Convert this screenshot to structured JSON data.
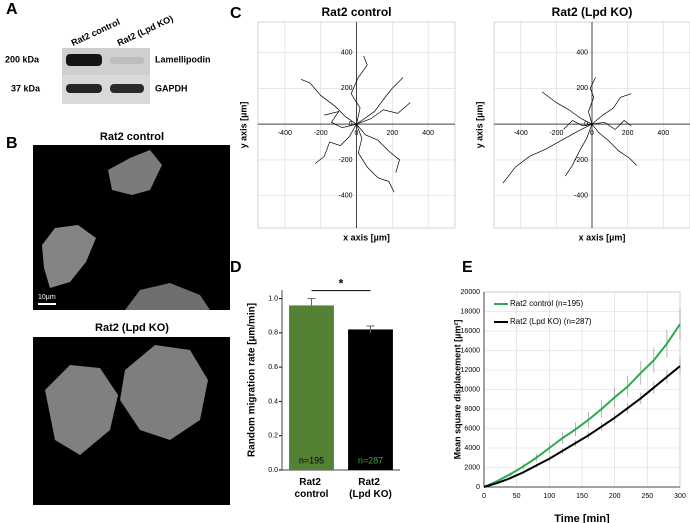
{
  "panel_labels": [
    "A",
    "B",
    "C",
    "D",
    "E"
  ],
  "blot": {
    "lanes": [
      "Rat2 control",
      "Rat2 (Lpd KO)"
    ],
    "sizes": [
      "200 kDa",
      "37 kDa"
    ],
    "proteins": [
      "Lamellipodin",
      "GAPDH"
    ]
  },
  "micrographs": {
    "titles": [
      "Rat2 control",
      "Rat2 (Lpd KO)"
    ],
    "scale_bar": "10µm"
  },
  "chart_data": [
    {
      "type": "line",
      "title": "Rat2 control",
      "xlabel": "x axis [µm]",
      "ylabel": "y axis [µm]",
      "xlim": [
        -550,
        550
      ],
      "ylim": [
        -580,
        570
      ],
      "xticks": [
        -400,
        -200,
        0,
        200,
        400
      ],
      "yticks": [
        -400,
        -200,
        0,
        200,
        400
      ],
      "grid": true,
      "series": [
        {
          "color": "#000000",
          "x": [
            0,
            -60,
            -120,
            -200,
            -260,
            -310
          ],
          "values": [
            0,
            40,
            100,
            160,
            230,
            250
          ]
        },
        {
          "color": "#000000",
          "x": [
            0,
            50,
            120,
            180,
            240,
            220
          ],
          "values": [
            0,
            -60,
            -90,
            -150,
            -200,
            -270
          ]
        },
        {
          "color": "#000000",
          "x": [
            0,
            80,
            150,
            230,
            300
          ],
          "values": [
            0,
            30,
            80,
            60,
            120
          ]
        },
        {
          "color": "#000000",
          "x": [
            0,
            -40,
            -90,
            -150,
            -180,
            -230
          ],
          "values": [
            0,
            -70,
            -120,
            -100,
            -180,
            -220
          ]
        },
        {
          "color": "#000000",
          "x": [
            0,
            20,
            -30,
            10,
            60,
            40
          ],
          "values": [
            0,
            90,
            170,
            260,
            330,
            380
          ]
        },
        {
          "color": "#000000",
          "x": [
            0,
            -80,
            -140,
            -100,
            -180
          ],
          "values": [
            0,
            -20,
            10,
            70,
            50
          ]
        },
        {
          "color": "#000000",
          "x": [
            0,
            30,
            10,
            60,
            120,
            180,
            210
          ],
          "values": [
            0,
            -80,
            -160,
            -240,
            -300,
            -320,
            -380
          ]
        },
        {
          "color": "#000000",
          "x": [
            0,
            100,
            160,
            200,
            260
          ],
          "values": [
            0,
            70,
            150,
            200,
            260
          ]
        }
      ]
    },
    {
      "type": "line",
      "title": "Rat2 (Lpd KO)",
      "xlabel": "x axis [µm]",
      "ylabel": "y axis [µm]",
      "xlim": [
        -550,
        550
      ],
      "ylim": [
        -580,
        570
      ],
      "xticks": [
        -400,
        -200,
        0,
        200,
        400
      ],
      "yticks": [
        -400,
        -200,
        0,
        200,
        400
      ],
      "grid": true,
      "series": [
        {
          "color": "#000000",
          "x": [
            0,
            -80,
            -170,
            -260,
            -350,
            -430,
            -500
          ],
          "values": [
            0,
            -40,
            -90,
            -140,
            -180,
            -240,
            -330
          ]
        },
        {
          "color": "#000000",
          "x": [
            0,
            -60,
            -130,
            -200,
            -280
          ],
          "values": [
            0,
            30,
            80,
            120,
            180
          ]
        },
        {
          "color": "#000000",
          "x": [
            0,
            40,
            90,
            150,
            210,
            250
          ],
          "values": [
            0,
            -50,
            -90,
            -150,
            -190,
            -230
          ]
        },
        {
          "color": "#000000",
          "x": [
            0,
            60,
            120,
            160,
            220
          ],
          "values": [
            0,
            50,
            90,
            150,
            170
          ]
        },
        {
          "color": "#000000",
          "x": [
            0,
            -20,
            10,
            -10,
            20
          ],
          "values": [
            0,
            70,
            150,
            200,
            260
          ]
        },
        {
          "color": "#000000",
          "x": [
            0,
            -30,
            -70,
            -110,
            -150
          ],
          "values": [
            0,
            -80,
            -150,
            -230,
            -290
          ]
        },
        {
          "color": "#000000",
          "x": [
            0,
            70,
            130,
            180,
            220
          ],
          "values": [
            0,
            10,
            -30,
            20,
            -10
          ]
        },
        {
          "color": "#000000",
          "x": [
            0,
            -50,
            -110,
            -160
          ],
          "values": [
            0,
            -10,
            20,
            -30
          ]
        }
      ]
    },
    {
      "type": "bar",
      "ylabel": "Random migration rate [µm/min]",
      "categories": [
        "Rat2 control",
        "Rat2 (Lpd KO)"
      ],
      "values": [
        0.96,
        0.82
      ],
      "errors": [
        0.04,
        0.02
      ],
      "colors": [
        "#548235",
        "#000000"
      ],
      "bar_labels": [
        "n=195",
        "n=287"
      ],
      "bar_label_colors": [
        "#000000",
        "#3aa84a"
      ],
      "annotation": "*",
      "ylim": [
        0,
        1.05
      ],
      "yticks": [
        {
          "value": 0,
          "label": "0.0"
        },
        0.2,
        0.4,
        0.6,
        0.8,
        {
          "value": 1,
          "label": "1.0"
        }
      ]
    },
    {
      "type": "line",
      "xlabel": "Time [min]",
      "ylabel": "Mean square displacement [µm²]",
      "x": [
        0,
        20,
        40,
        60,
        80,
        100,
        120,
        140,
        160,
        180,
        200,
        220,
        240,
        260,
        280,
        300
      ],
      "xlim": [
        0,
        300
      ],
      "ylim": [
        0,
        20000
      ],
      "xticks": [
        0,
        50,
        100,
        150,
        200,
        250,
        300
      ],
      "yticks": [
        0,
        2000,
        4000,
        6000,
        8000,
        10000,
        12000,
        14000,
        16000,
        18000,
        20000
      ],
      "grid": true,
      "legend": "upper left",
      "series": [
        {
          "name": "Rat2 control (n=195)",
          "color": "#2bab4d",
          "values": [
            0,
            600,
            1300,
            2100,
            3000,
            4000,
            5000,
            5900,
            6900,
            8000,
            9200,
            10300,
            11700,
            13000,
            14700,
            16700
          ],
          "errors": [
            0,
            100,
            200,
            300,
            400,
            500,
            600,
            700,
            800,
            900,
            1000,
            1100,
            1200,
            1300,
            1400,
            1600
          ]
        },
        {
          "name": "Rat2 (Lpd KO) (n=287)",
          "color": "#000000",
          "values": [
            0,
            400,
            900,
            1500,
            2200,
            2900,
            3700,
            4500,
            5300,
            6200,
            7100,
            8100,
            9100,
            10200,
            11300,
            12400
          ],
          "errors": [
            0,
            50,
            100,
            150,
            200,
            250,
            300,
            350,
            400,
            450,
            500,
            550,
            600,
            650,
            700,
            800
          ]
        }
      ]
    }
  ]
}
